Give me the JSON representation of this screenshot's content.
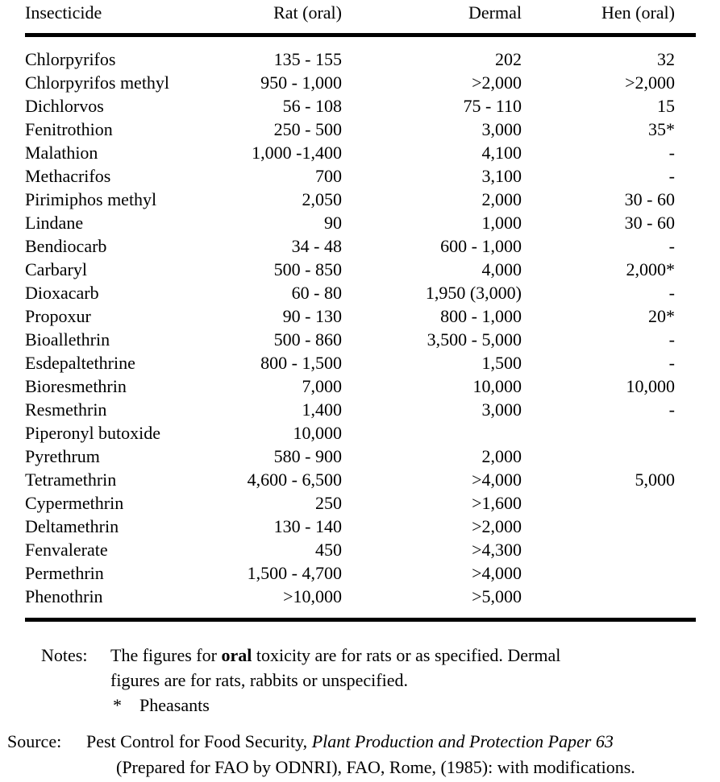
{
  "table": {
    "columns": [
      "Insecticide",
      "Rat (oral)",
      "Dermal",
      "Hen (oral)"
    ],
    "rows": [
      {
        "insecticide": "Chlorpyrifos",
        "rat": "135 - 155",
        "dermal": "202",
        "hen": "32"
      },
      {
        "insecticide": "Chlorpyrifos methyl",
        "rat": "950 - 1,000",
        "dermal": ">2,000",
        "hen": ">2,000"
      },
      {
        "insecticide": "Dichlorvos",
        "rat": "56 - 108",
        "dermal": "75 - 110",
        "hen": "15"
      },
      {
        "insecticide": "Fenitrothion",
        "rat": "250 - 500",
        "dermal": "3,000",
        "hen": "35*"
      },
      {
        "insecticide": "Malathion",
        "rat": "1,000 -1,400",
        "dermal": "4,100",
        "hen": "-"
      },
      {
        "insecticide": "Methacrifos",
        "rat": "700",
        "dermal": "3,100",
        "hen": "-"
      },
      {
        "insecticide": "Pirimiphos methyl",
        "rat": "2,050",
        "dermal": "2,000",
        "hen": "30 - 60"
      },
      {
        "insecticide": "Lindane",
        "rat": "90",
        "dermal": "1,000",
        "hen": "30 - 60"
      },
      {
        "insecticide": "Bendiocarb",
        "rat": "34 - 48",
        "dermal": "600 - 1,000",
        "hen": "-"
      },
      {
        "insecticide": "Carbaryl",
        "rat": "500 - 850",
        "dermal": "4,000",
        "hen": "2,000*"
      },
      {
        "insecticide": "Dioxacarb",
        "rat": "60 - 80",
        "dermal": "1,950 (3,000)",
        "hen": "-"
      },
      {
        "insecticide": "Propoxur",
        "rat": "90 - 130",
        "dermal": "800 - 1,000",
        "hen": "20*"
      },
      {
        "insecticide": "Bioallethrin",
        "rat": "500 - 860",
        "dermal": "3,500 - 5,000",
        "hen": "-"
      },
      {
        "insecticide": "Esdepaltethrine",
        "rat": "800 - 1,500",
        "dermal": "1,500",
        "hen": "-"
      },
      {
        "insecticide": "Bioresmethrin",
        "rat": "7,000",
        "dermal": "10,000",
        "hen": "10,000"
      },
      {
        "insecticide": "Resmethrin",
        "rat": "1,400",
        "dermal": "3,000",
        "hen": "-"
      },
      {
        "insecticide": "Piperonyl butoxide",
        "rat": "10,000",
        "dermal": "",
        "hen": ""
      },
      {
        "insecticide": "Pyrethrum",
        "rat": "580 - 900",
        "dermal": "2,000",
        "hen": ""
      },
      {
        "insecticide": "Tetramethrin",
        "rat": "4,600 - 6,500",
        "dermal": ">4,000",
        "hen": "5,000"
      },
      {
        "insecticide": "Cypermethrin",
        "rat": "250",
        "dermal": ">1,600",
        "hen": ""
      },
      {
        "insecticide": "Deltamethrin",
        "rat": "130 - 140",
        "dermal": ">2,000",
        "hen": ""
      },
      {
        "insecticide": "Fenvalerate",
        "rat": "450",
        "dermal": ">4,300",
        "hen": ""
      },
      {
        "insecticide": "Permethrin",
        "rat": "1,500 - 4,700",
        "dermal": ">4,000",
        "hen": ""
      },
      {
        "insecticide": "Phenothrin",
        "rat": ">10,000",
        "dermal": ">5,000",
        "hen": ""
      }
    ]
  },
  "notes": {
    "label": "Notes:",
    "line1_pre": "The figures for ",
    "line1_bold": "oral",
    "line1_post": " toxicity are for rats or as specified. Dermal",
    "line2": "figures are for rats, rabbits or unspecified.",
    "asterisk_marker": "*",
    "asterisk_text": "Pheasants"
  },
  "source": {
    "label": "Source:",
    "line1_regular": "Pest Control for Food Security, ",
    "line1_italic": "Plant Production and Protection Paper 63",
    "line2": "(Prepared for FAO by ODNRI), FAO, Rome, (1985): with modifications."
  }
}
